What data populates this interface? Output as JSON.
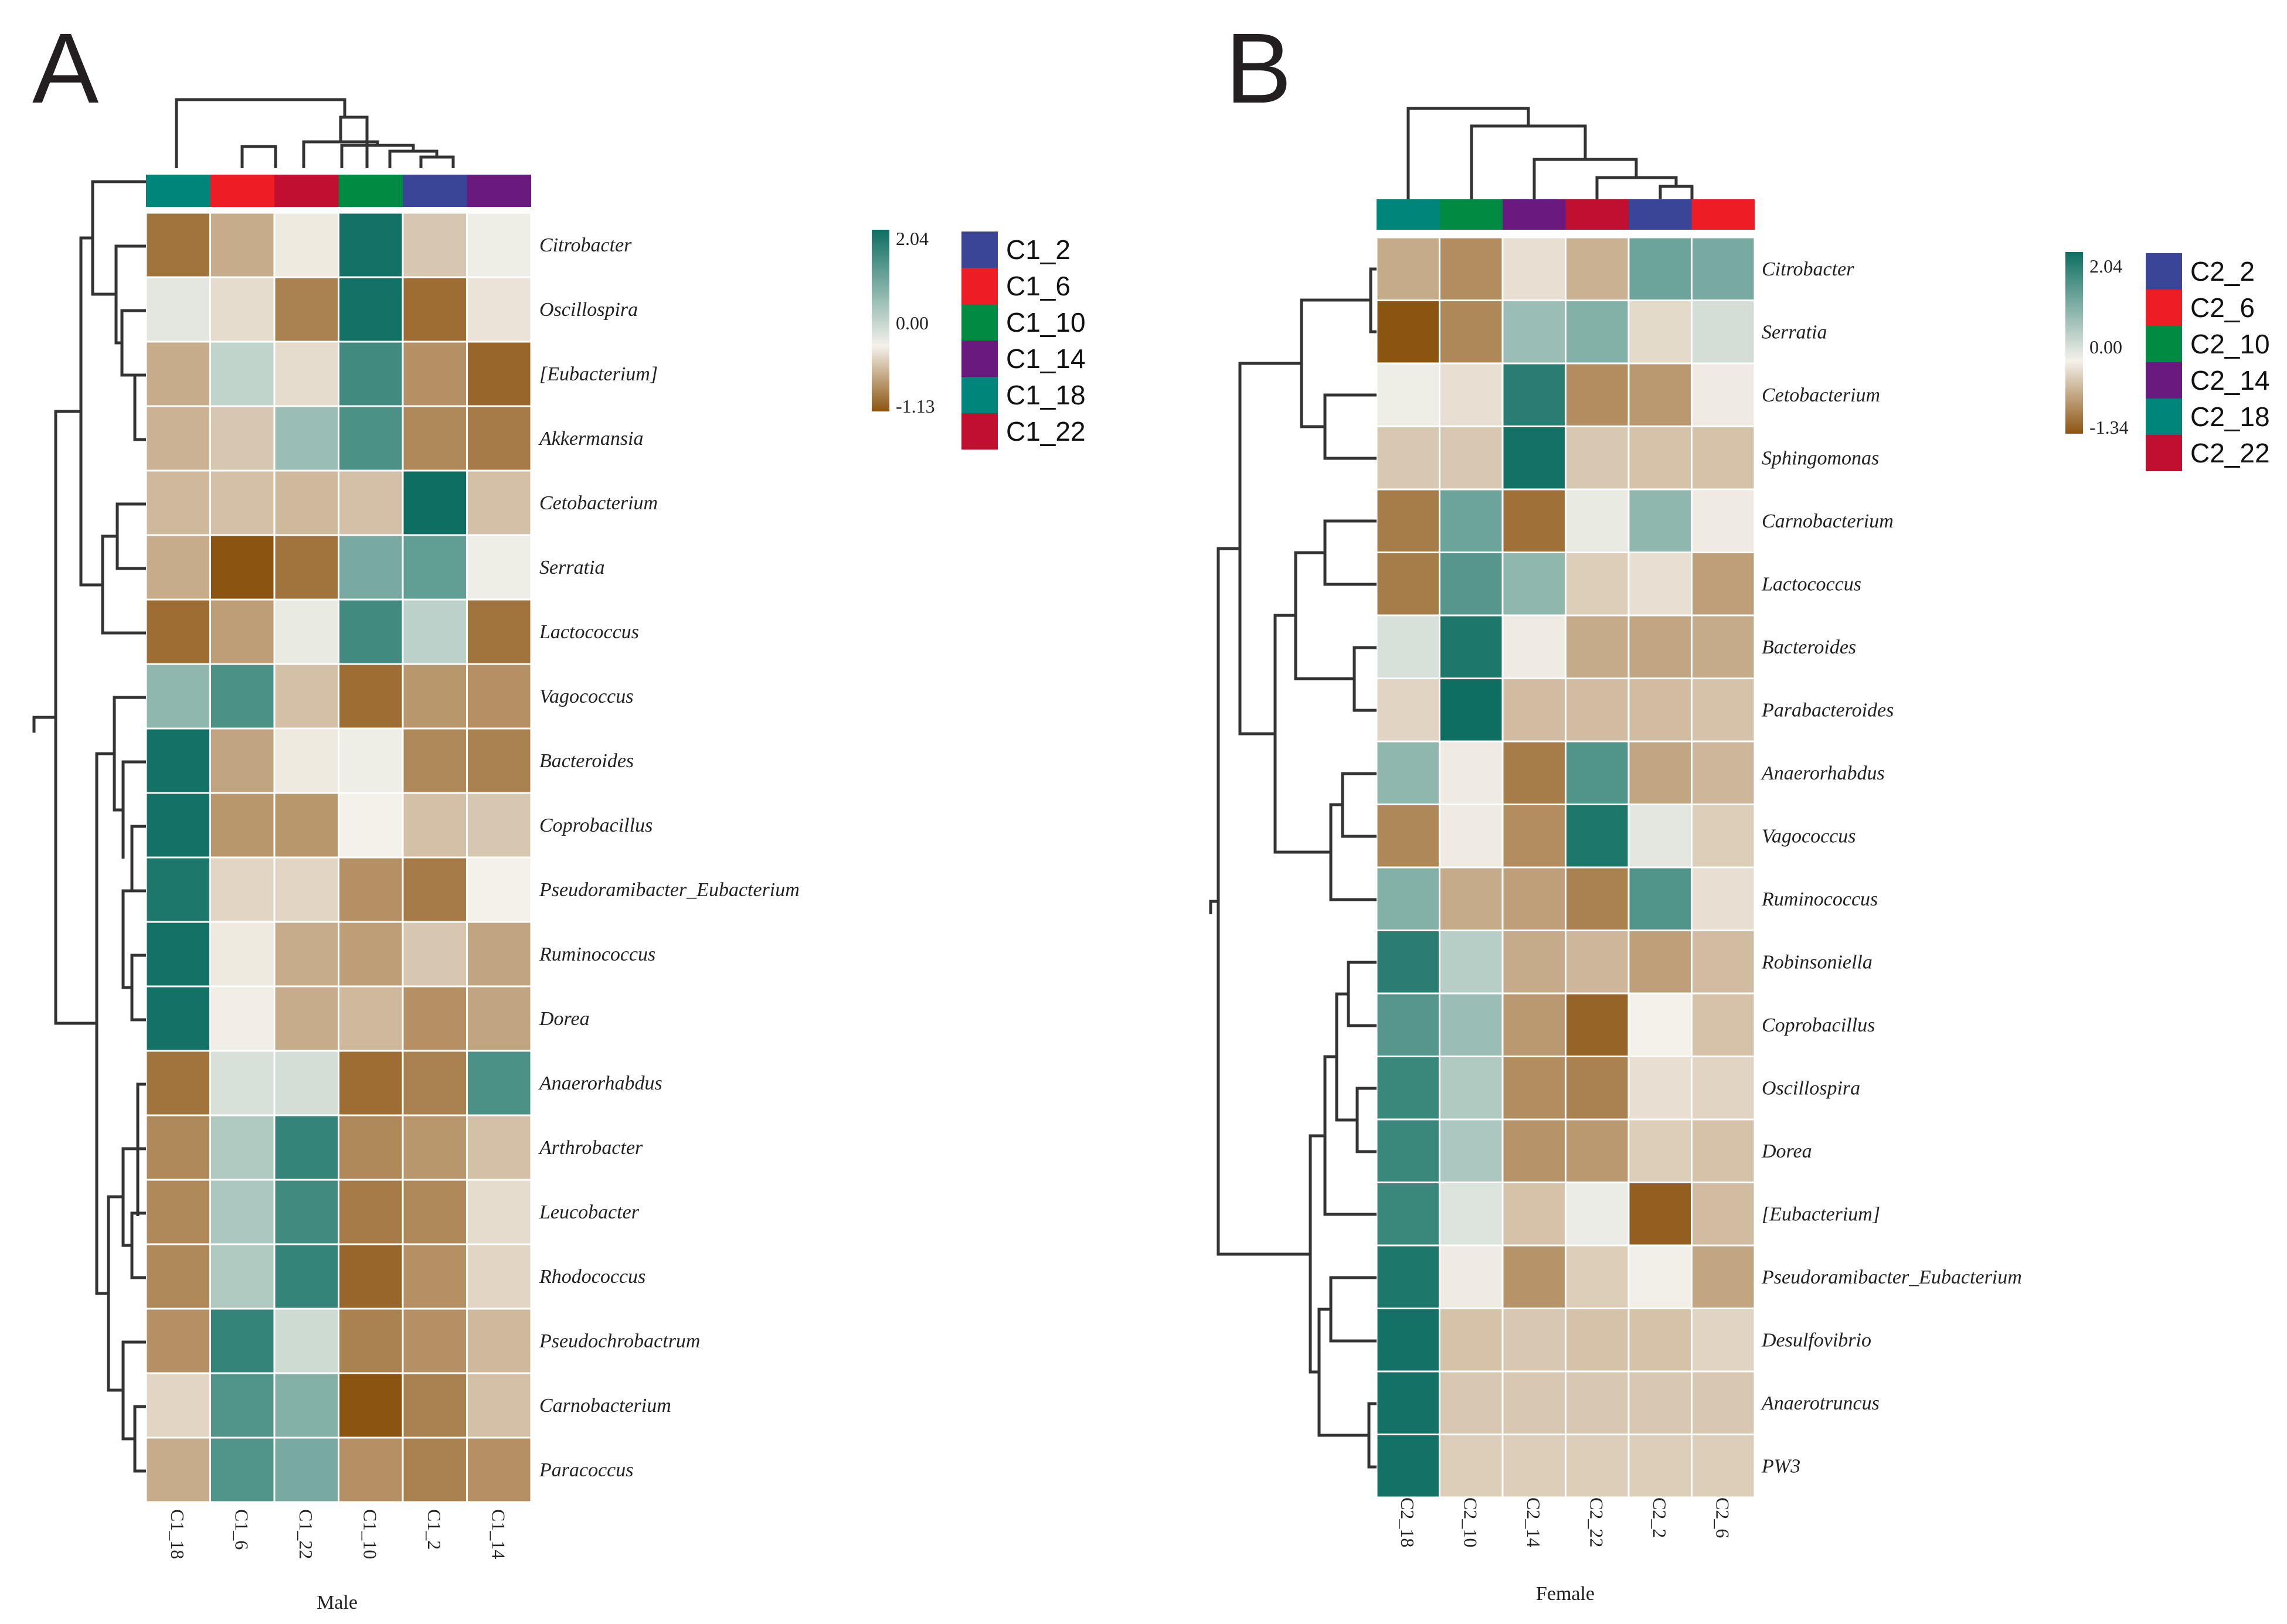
{
  "color_scale": {
    "low": "#8c5411",
    "mid": "#f4f1ea",
    "high": "#0e6e62"
  },
  "chart_data": [
    {
      "type": "heatmap",
      "panel": "A",
      "title": "",
      "xlabel": "Male",
      "ylabel": "",
      "columns": [
        "C1_18",
        "C1_6",
        "C1_22",
        "C1_10",
        "C1_2",
        "C1_14"
      ],
      "column_colors": [
        "#00857a",
        "#ee1c25",
        "#c10f2f",
        "#008a42",
        "#3a4597",
        "#6a1a7e"
      ],
      "rows": [
        "Citrobacter",
        "Oscillospira",
        "[Eubacterium]",
        "Akkermansia",
        "Cetobacterium",
        "Serratia",
        "Lactococcus",
        "Vagococcus",
        "Bacteroides",
        "Coprobacillus",
        "Pseudoramibacter_Eubacterium",
        "Ruminococcus",
        "Dorea",
        "Anaerorhabdus",
        "Arthrobacter",
        "Leucobacter",
        "Rhodococcus",
        "Pseudochrobactrum",
        "Carnobacterium",
        "Paracoccus"
      ],
      "values": [
        [
          -0.9,
          -0.5,
          -0.05,
          2.0,
          -0.3,
          0.05
        ],
        [
          0.15,
          -0.15,
          -0.8,
          2.0,
          -0.95,
          -0.1
        ],
        [
          -0.5,
          0.45,
          -0.15,
          1.6,
          -0.7,
          -1.0
        ],
        [
          -0.45,
          -0.3,
          0.8,
          1.5,
          -0.75,
          -0.85
        ],
        [
          -0.4,
          -0.35,
          -0.4,
          -0.35,
          2.04,
          -0.35
        ],
        [
          -0.5,
          -1.13,
          -0.9,
          1.1,
          1.3,
          0.05
        ],
        [
          -0.95,
          -0.6,
          0.1,
          1.6,
          0.5,
          -0.9
        ],
        [
          0.9,
          1.5,
          -0.35,
          -0.95,
          -0.65,
          -0.7
        ],
        [
          2.0,
          -0.55,
          -0.05,
          0.05,
          -0.75,
          -0.8
        ],
        [
          2.0,
          -0.65,
          -0.65,
          0.0,
          -0.35,
          -0.3
        ],
        [
          1.9,
          -0.2,
          -0.2,
          -0.7,
          -0.85,
          0.0
        ],
        [
          2.0,
          -0.05,
          -0.5,
          -0.6,
          -0.3,
          -0.55
        ],
        [
          2.0,
          -0.02,
          -0.5,
          -0.4,
          -0.7,
          -0.55
        ],
        [
          -0.9,
          0.25,
          0.3,
          -0.95,
          -0.8,
          1.5
        ],
        [
          -0.75,
          0.6,
          1.7,
          -0.75,
          -0.65,
          -0.35
        ],
        [
          -0.75,
          0.65,
          1.6,
          -0.85,
          -0.75,
          -0.15
        ],
        [
          -0.75,
          0.6,
          1.7,
          -1.0,
          -0.7,
          -0.2
        ],
        [
          -0.7,
          1.7,
          0.35,
          -0.8,
          -0.7,
          -0.4
        ],
        [
          -0.2,
          1.45,
          1.0,
          -1.13,
          -0.8,
          -0.35
        ],
        [
          -0.5,
          1.45,
          1.1,
          -0.7,
          -0.8,
          -0.7
        ]
      ],
      "color_range": [
        "-1.13",
        "0.00",
        "2.04"
      ],
      "legend": [
        "C1_2",
        "C1_6",
        "C1_10",
        "C1_14",
        "C1_18",
        "C1_22"
      ],
      "legend_colors": [
        "#3a4597",
        "#ee1c25",
        "#008a42",
        "#6a1a7e",
        "#00857a",
        "#c10f2f"
      ]
    },
    {
      "type": "heatmap",
      "panel": "B",
      "title": "",
      "xlabel": "Female",
      "ylabel": "",
      "columns": [
        "C2_18",
        "C2_10",
        "C2_14",
        "C2_22",
        "C2_2",
        "C2_6"
      ],
      "column_colors": [
        "#00857a",
        "#008a42",
        "#6a1a7e",
        "#c10f2f",
        "#3a4597",
        "#ee1c25"
      ],
      "rows": [
        "Citrobacter",
        "Serratia",
        "Cetobacterium",
        "Sphingomonas",
        "Carnobacterium",
        "Lactococcus",
        "Bacteroides",
        "Parabacteroides",
        "Anaerorhabdus",
        "Vagococcus",
        "Ruminococcus",
        "Robinsoniella",
        "Coprobacillus",
        "Oscillospira",
        "Dorea",
        "[Eubacterium]",
        "Pseudoramibacter_Eubacterium",
        "Desulfovibrio",
        "Anaerotruncus",
        "PW3"
      ],
      "values": [
        [
          -0.6,
          -0.85,
          -0.15,
          -0.55,
          1.2,
          1.1
        ],
        [
          -1.34,
          -0.9,
          0.8,
          1.0,
          -0.2,
          0.3
        ],
        [
          0.05,
          -0.15,
          1.8,
          -0.85,
          -0.75,
          -0.05
        ],
        [
          -0.35,
          -0.35,
          2.0,
          -0.35,
          -0.4,
          -0.4
        ],
        [
          -1.0,
          1.2,
          -1.1,
          0.1,
          0.9,
          -0.05
        ],
        [
          -1.0,
          1.4,
          0.9,
          -0.3,
          -0.15,
          -0.7
        ],
        [
          0.25,
          1.9,
          -0.05,
          -0.6,
          -0.65,
          -0.6
        ],
        [
          -0.25,
          2.04,
          -0.45,
          -0.45,
          -0.45,
          -0.4
        ],
        [
          0.9,
          -0.05,
          -1.0,
          1.45,
          -0.65,
          -0.5
        ],
        [
          -0.9,
          -0.05,
          -0.85,
          1.9,
          0.15,
          -0.3
        ],
        [
          1.0,
          -0.6,
          -0.7,
          -0.95,
          1.45,
          -0.15
        ],
        [
          1.8,
          0.55,
          -0.6,
          -0.5,
          -0.7,
          -0.45
        ],
        [
          1.4,
          0.8,
          -0.75,
          -1.2,
          0.0,
          -0.4
        ],
        [
          1.65,
          0.6,
          -0.85,
          -0.95,
          -0.15,
          -0.25
        ],
        [
          1.65,
          0.65,
          -0.8,
          -0.75,
          -0.3,
          -0.4
        ],
        [
          1.65,
          0.2,
          -0.4,
          0.08,
          -1.25,
          -0.45
        ],
        [
          1.9,
          -0.05,
          -0.8,
          -0.3,
          -0.02,
          -0.65
        ],
        [
          2.0,
          -0.4,
          -0.35,
          -0.4,
          -0.4,
          -0.25
        ],
        [
          2.0,
          -0.35,
          -0.35,
          -0.35,
          -0.35,
          -0.35
        ],
        [
          2.0,
          -0.3,
          -0.3,
          -0.3,
          -0.3,
          -0.3
        ]
      ],
      "color_range": [
        "-1.34",
        "0.00",
        "2.04"
      ],
      "legend": [
        "C2_2",
        "C2_6",
        "C2_10",
        "C2_14",
        "C2_18",
        "C2_22"
      ],
      "legend_colors": [
        "#3a4597",
        "#ee1c25",
        "#008a42",
        "#6a1a7e",
        "#00857a",
        "#c10f2f"
      ]
    }
  ]
}
